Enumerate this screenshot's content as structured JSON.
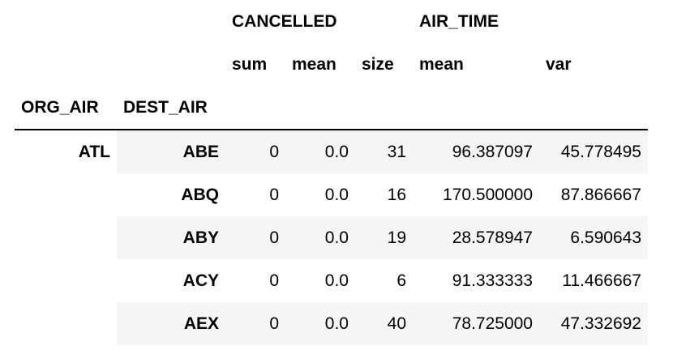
{
  "table": {
    "column_groups": [
      "CANCELLED",
      "AIR_TIME"
    ],
    "sub_columns": [
      "sum",
      "mean",
      "size",
      "mean",
      "var"
    ],
    "index_names": [
      "ORG_AIR",
      "DEST_AIR"
    ],
    "org_value": "ATL",
    "rows": [
      {
        "dest": "ABE",
        "sum": "0",
        "cmean": "0.0",
        "size": "31",
        "amean": "96.387097",
        "var": "45.778495"
      },
      {
        "dest": "ABQ",
        "sum": "0",
        "cmean": "0.0",
        "size": "16",
        "amean": "170.500000",
        "var": "87.866667"
      },
      {
        "dest": "ABY",
        "sum": "0",
        "cmean": "0.0",
        "size": "19",
        "amean": "28.578947",
        "var": "6.590643"
      },
      {
        "dest": "ACY",
        "sum": "0",
        "cmean": "0.0",
        "size": "6",
        "amean": "91.333333",
        "var": "11.466667"
      },
      {
        "dest": "AEX",
        "sum": "0",
        "cmean": "0.0",
        "size": "40",
        "amean": "78.725000",
        "var": "47.332692"
      }
    ]
  },
  "colors": {
    "stripe": "#f5f5f5",
    "background": "#ffffff",
    "text": "#000000"
  }
}
